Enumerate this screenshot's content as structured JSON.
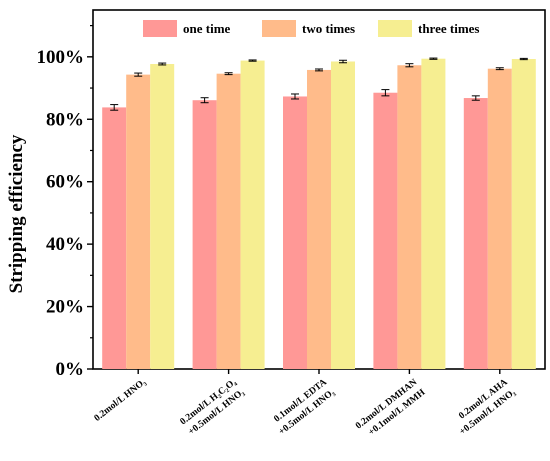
{
  "chart_data": {
    "type": "bar",
    "ylabel": "Stripping efficiency",
    "ylim": [
      0,
      115
    ],
    "yticks": [
      0,
      20,
      40,
      60,
      80,
      100
    ],
    "ytick_labels": [
      "0%",
      "20%",
      "40%",
      "60%",
      "80%",
      "100%"
    ],
    "categories": [
      [
        "0.2mol/L HNO₃"
      ],
      [
        "0.2mol/L H₂C₂O₄",
        "+0.5mol/L HNO₃"
      ],
      [
        "0.1mol/L EDTA",
        "+0.5mol/L HNO₃"
      ],
      [
        "0.2mol/L DMHAN",
        "+0.1mol/L MMH"
      ],
      [
        "0.2mol/L AHA",
        "+0.5mol/L HNO₃"
      ]
    ],
    "series": [
      {
        "name": "one time",
        "color": "#ff9896",
        "values": [
          83.8,
          86.1,
          87.3,
          88.5,
          86.8
        ],
        "errors": [
          0.9,
          0.8,
          0.8,
          1.0,
          0.7
        ]
      },
      {
        "name": "two times",
        "color": "#ffbb8a",
        "values": [
          94.3,
          94.6,
          95.8,
          97.3,
          96.2
        ],
        "errors": [
          0.5,
          0.3,
          0.3,
          0.5,
          0.3
        ]
      },
      {
        "name": "three times",
        "color": "#f6ee91",
        "values": [
          97.7,
          98.8,
          98.5,
          99.4,
          99.3
        ],
        "errors": [
          0.3,
          0.2,
          0.4,
          0.2,
          0.2
        ]
      }
    ],
    "legend_position": "top",
    "grid": false
  }
}
